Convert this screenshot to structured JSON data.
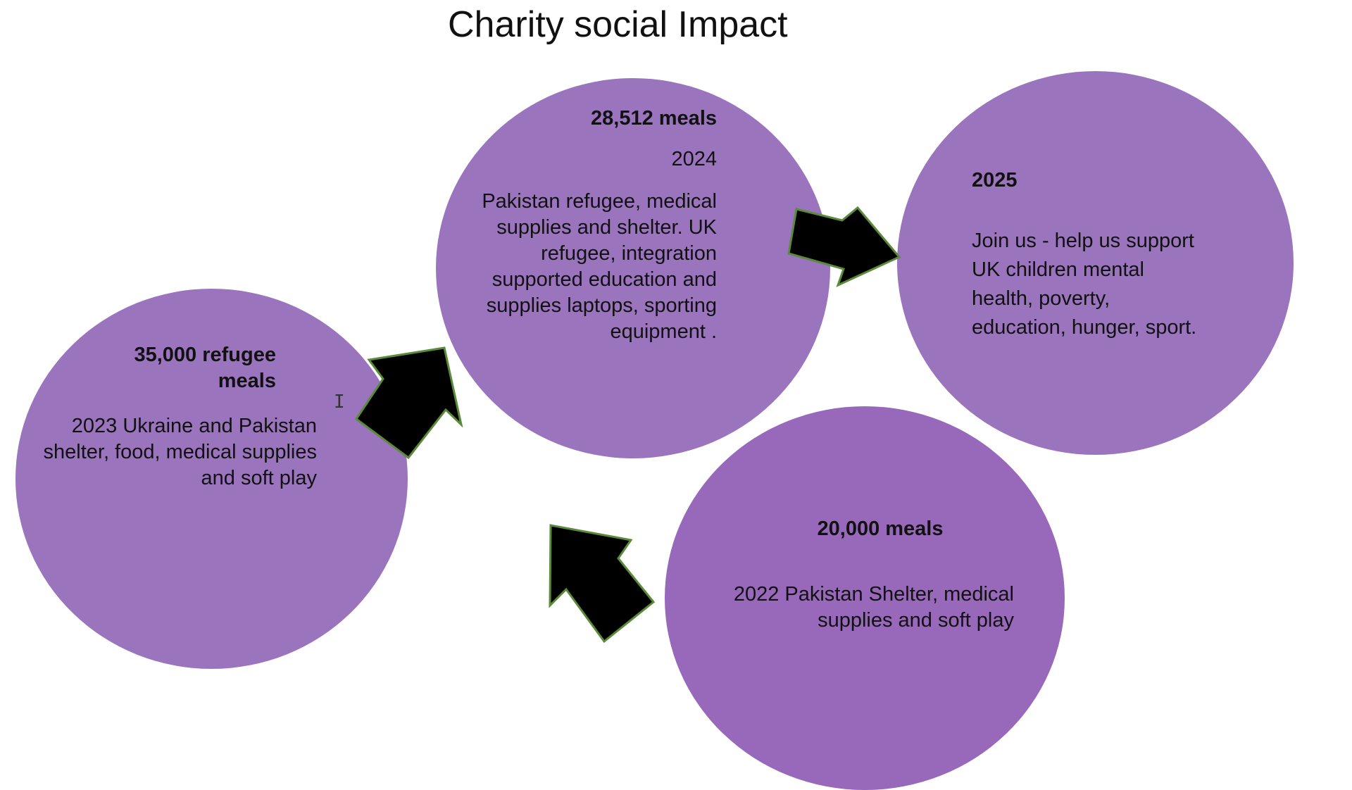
{
  "title": "Charity social Impact",
  "colors": {
    "circle": "#9b74be",
    "circle_alt": "#9868ba",
    "arrow_fill": "#000000",
    "arrow_stroke": "#5a8a3a"
  },
  "nodes": {
    "y2022": {
      "head": "20,000 meals",
      "body": "2022 Pakistan Shelter, medical supplies and soft play"
    },
    "y2023": {
      "head": "35,000 refugee meals",
      "body": "2023 Ukraine and Pakistan  shelter, food, medical supplies and soft play"
    },
    "y2024": {
      "head": "28,512 meals",
      "year": "2024",
      "body": "Pakistan refugee, medical supplies and shelter.  UK refugee, integration supported education and supplies laptops, sporting equipment   ."
    },
    "y2025": {
      "head": "2025",
      "body": "Join us - help us support UK children mental health, poverty, education, hunger, sport."
    }
  },
  "arrows": [
    "arrow-2022-to-2023",
    "arrow-2023-to-2024",
    "arrow-2024-to-2025"
  ],
  "cursor_icon": "text-cursor-icon"
}
